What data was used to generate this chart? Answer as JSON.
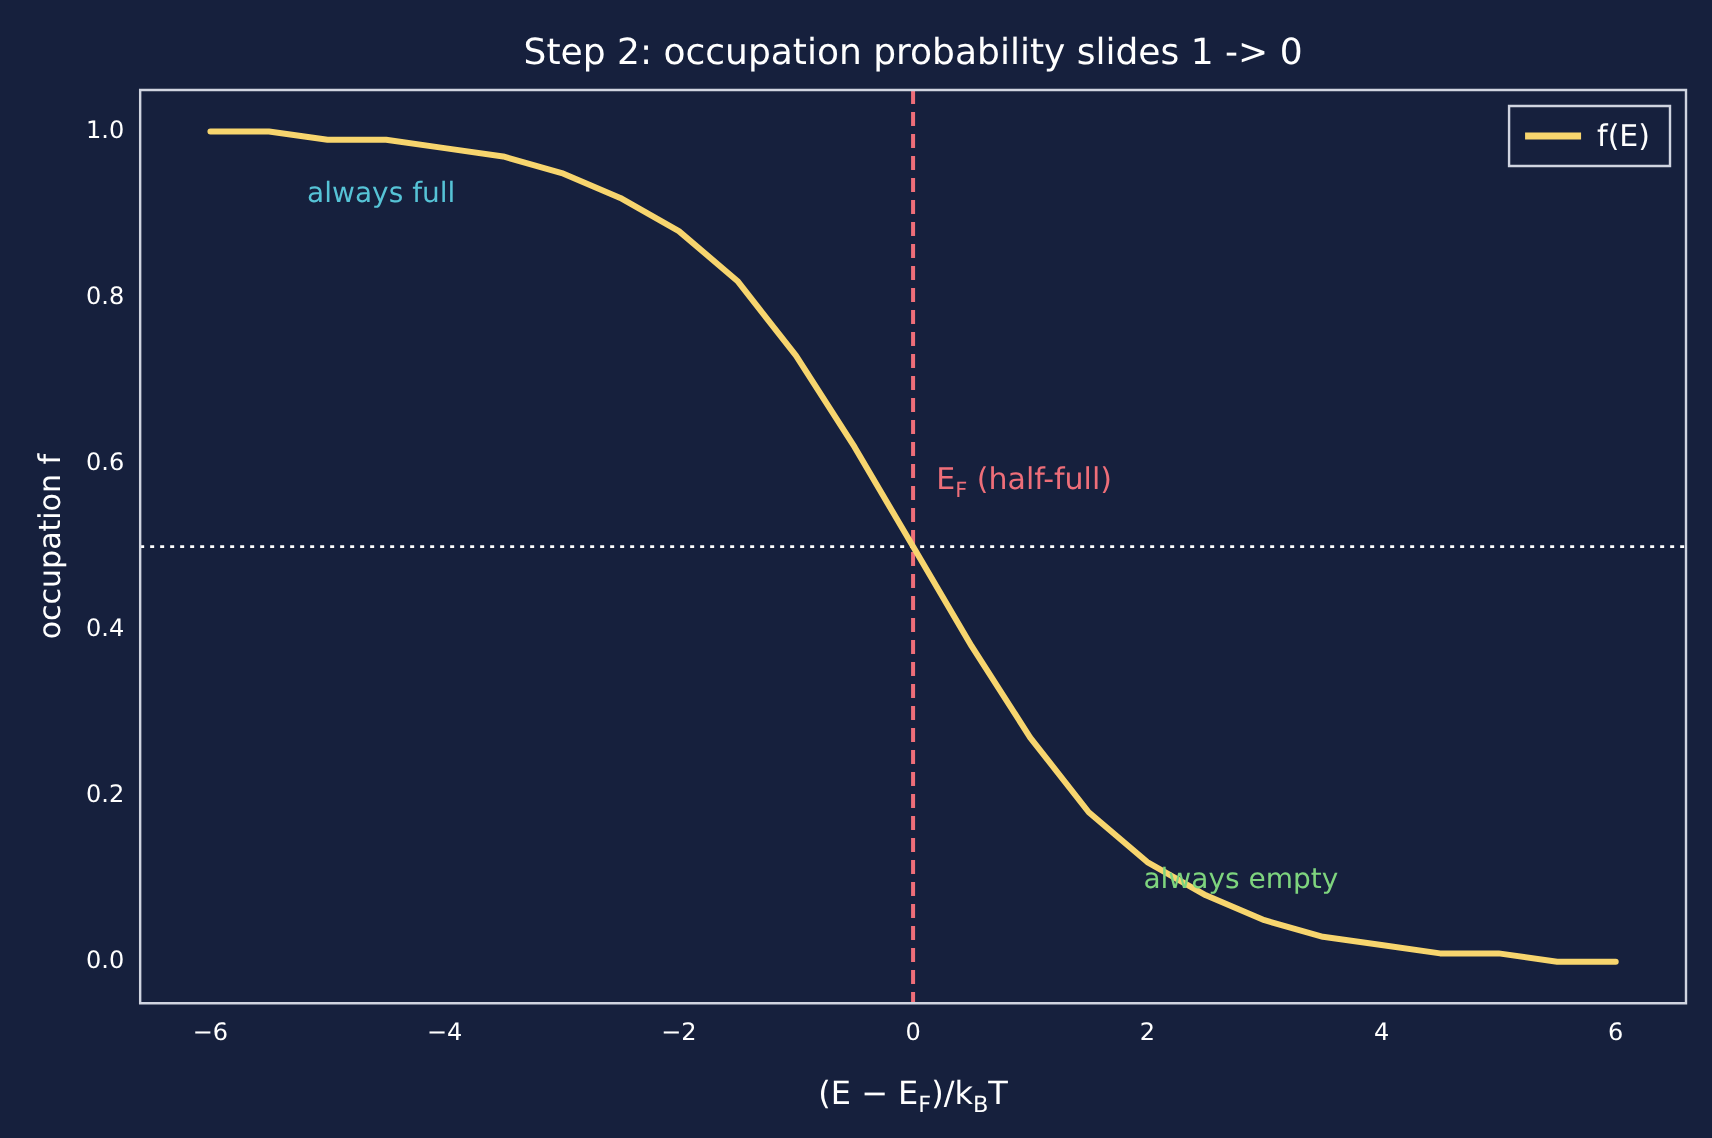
{
  "chart_data": {
    "type": "line",
    "title": "Step 2: occupation probability slides 1 -> 0",
    "xlabel": "(E − E$_{F}$)/k$_{B}$T",
    "ylabel": "occupation f",
    "x": [
      -6,
      -5.5,
      -5,
      -4.5,
      -4,
      -3.5,
      -3,
      -2.5,
      -2,
      -1.5,
      -1,
      -0.5,
      0,
      0.5,
      1,
      1.5,
      2,
      2.5,
      3,
      3.5,
      4,
      4.5,
      5,
      5.5,
      6
    ],
    "series": [
      {
        "name": "f(E)",
        "color": "#f7d56e",
        "values": [
          1.0,
          1.0,
          0.99,
          0.99,
          0.98,
          0.97,
          0.95,
          0.92,
          0.88,
          0.82,
          0.73,
          0.62,
          0.5,
          0.38,
          0.27,
          0.18,
          0.12,
          0.08,
          0.05,
          0.03,
          0.02,
          0.01,
          0.01,
          0.0,
          0.0
        ]
      }
    ],
    "xlim": [
      -6.6,
      6.6
    ],
    "ylim": [
      -0.05,
      1.05
    ],
    "xticks": [
      {
        "value": -6,
        "label": "−6"
      },
      {
        "value": -4,
        "label": "−4"
      },
      {
        "value": -2,
        "label": "−2"
      },
      0,
      2,
      4,
      6
    ],
    "yticks": [
      {
        "value": 0,
        "label": "0.0"
      },
      {
        "value": 0.2,
        "label": "0.2"
      },
      {
        "value": 0.4,
        "label": "0.4"
      },
      {
        "value": 0.6,
        "label": "0.6"
      },
      {
        "value": 0.8,
        "label": "0.8"
      },
      {
        "value": 1,
        "label": "1.0"
      }
    ],
    "ref_lines": [
      {
        "axis": "x",
        "value": 0,
        "color": "#ee6e79",
        "line_style": "dashed"
      },
      {
        "axis": "y",
        "value": 0.5,
        "color": "#ffffff",
        "line_style": "dotted"
      }
    ],
    "annotations": [
      "always full",
      "E$_{F}$ (half-full)",
      "always empty"
    ],
    "legend": "top right",
    "grid": false,
    "marker": "none",
    "line_style": "solid"
  }
}
